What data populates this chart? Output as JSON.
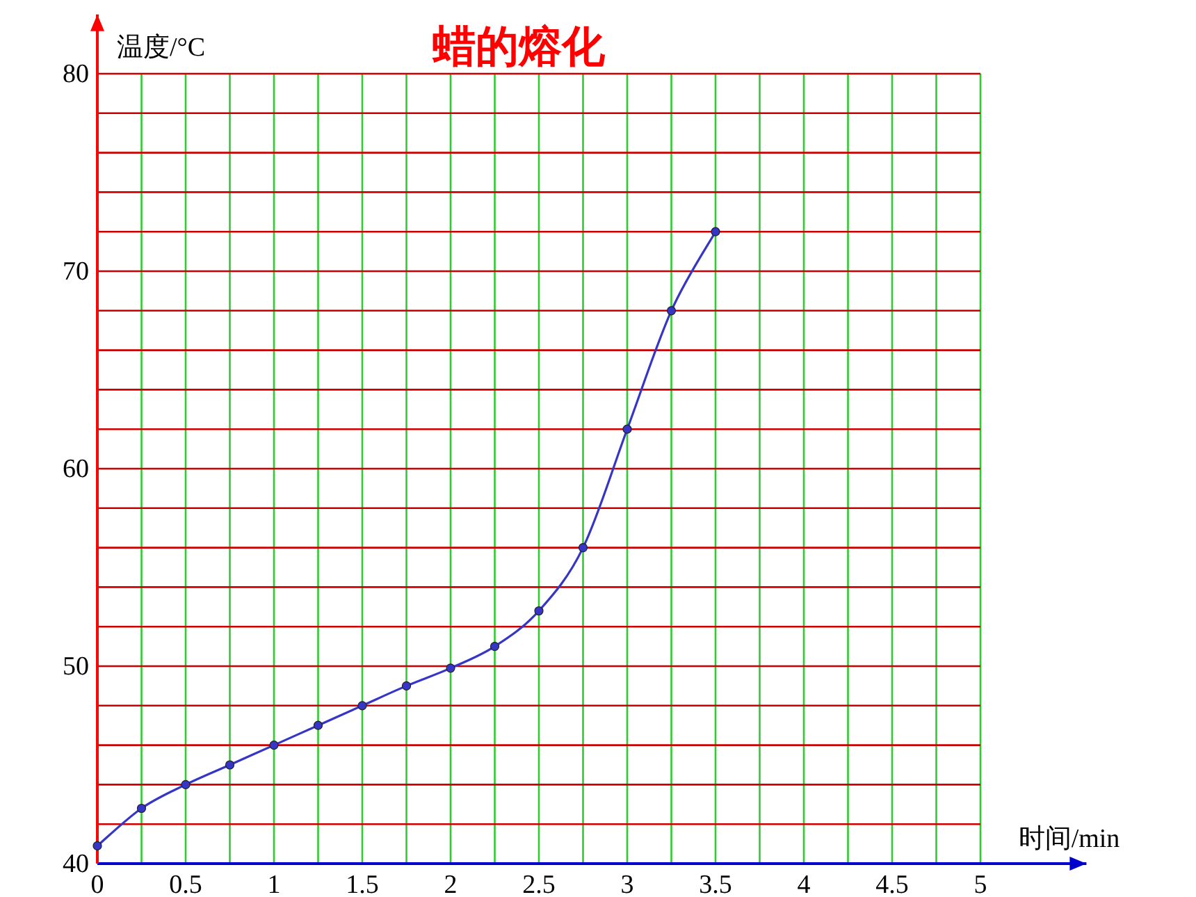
{
  "chart_data": {
    "type": "line",
    "title": "蜡的熔化",
    "xlabel": "时间/min",
    "ylabel": "温度/°C",
    "x": [
      0,
      0.25,
      0.5,
      0.75,
      1,
      1.25,
      1.5,
      1.75,
      2,
      2.25,
      2.5,
      2.75,
      3,
      3.25,
      3.5
    ],
    "series": [
      {
        "color": "#3535c8",
        "values": [
          40.9,
          42.8,
          44,
          45,
          46,
          47,
          48,
          49,
          49.9,
          51,
          52.8,
          56,
          62,
          68,
          72
        ]
      }
    ],
    "xlim": [
      0,
      5.6
    ],
    "ylim": [
      40,
      83
    ],
    "xticks": [
      0,
      {
        "value": 0.25,
        "label": null
      },
      0.5,
      {
        "value": 0.75,
        "label": null
      },
      1,
      {
        "value": 1.25,
        "label": null
      },
      1.5,
      {
        "value": 1.75,
        "label": null
      },
      2,
      {
        "value": 2.25,
        "label": null
      },
      2.5,
      {
        "value": 2.75,
        "label": null
      },
      3,
      {
        "value": 3.25,
        "label": null
      },
      3.5,
      {
        "value": 3.75,
        "label": null
      },
      4,
      {
        "value": 4.25,
        "label": null
      },
      4.5,
      {
        "value": 4.75,
        "label": null
      },
      5
    ],
    "yticks": [
      40,
      {
        "value": 42,
        "label": null
      },
      {
        "value": 44,
        "label": null
      },
      {
        "value": 46,
        "label": null
      },
      {
        "value": 48,
        "label": null
      },
      50,
      {
        "value": 52,
        "label": null
      },
      {
        "value": 54,
        "label": null
      },
      {
        "value": 56,
        "label": null
      },
      {
        "value": 58,
        "label": null
      },
      60,
      {
        "value": 62,
        "label": null
      },
      {
        "value": 64,
        "label": null
      },
      {
        "value": 66,
        "label": null
      },
      {
        "value": 68,
        "label": null
      },
      70,
      {
        "value": 72,
        "label": null
      },
      {
        "value": 74,
        "label": null
      },
      {
        "value": 76,
        "label": null
      },
      {
        "value": 78,
        "label": null
      },
      80
    ],
    "grid": true,
    "marker": "circle",
    "line_style": "solid"
  }
}
